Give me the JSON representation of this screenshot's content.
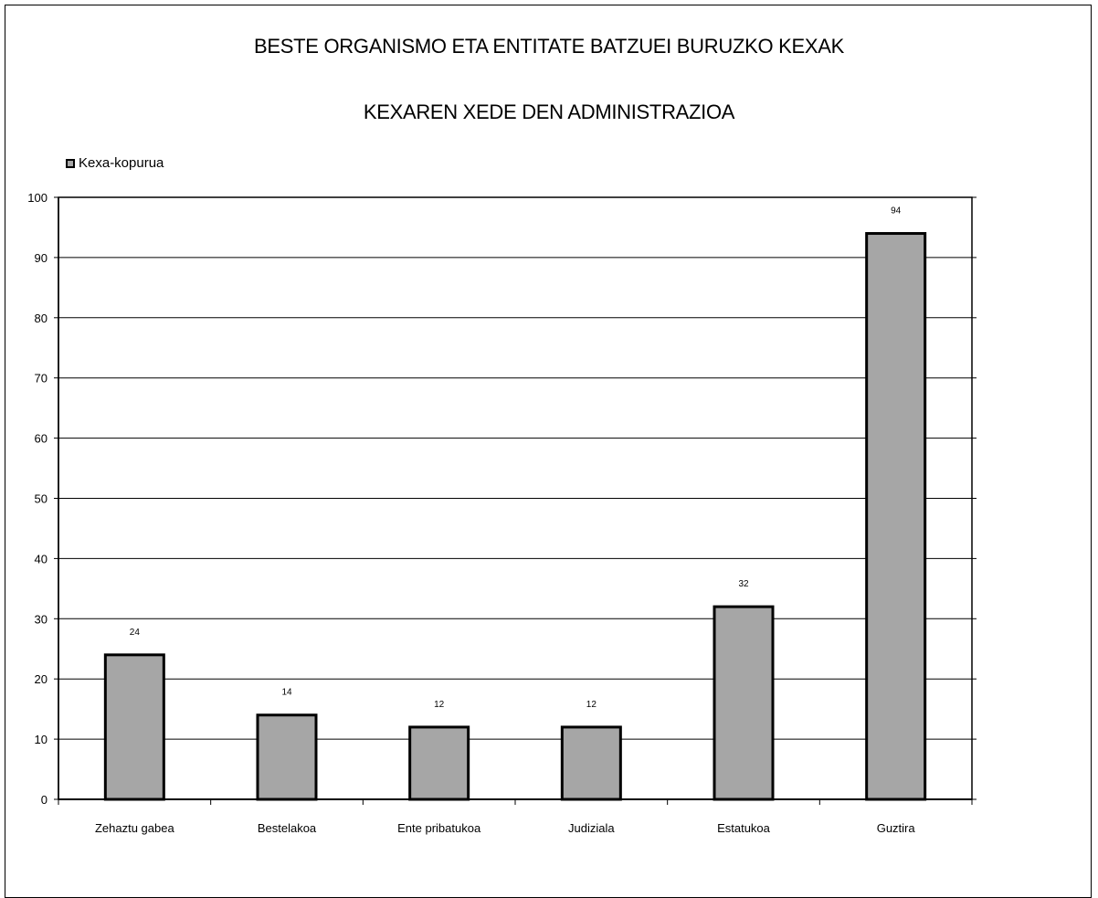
{
  "chart_data": {
    "type": "bar",
    "title": "BESTE ORGANISMO ETA ENTITATE BATZUEI BURUZKO KEXAK",
    "subtitle": "KEXAREN XEDE DEN ADMINISTRAZIOA",
    "categories": [
      "Zehaztu gabea",
      "Bestelakoa",
      "Ente pribatukoa",
      "Judiziala",
      "Estatukoa",
      "Guztira"
    ],
    "series": [
      {
        "name": "Kexa-kopurua",
        "values": [
          24,
          14,
          12,
          12,
          32,
          94
        ]
      }
    ],
    "ylim": [
      0,
      100
    ],
    "yticks": [
      0,
      10,
      20,
      30,
      40,
      50,
      60,
      70,
      80,
      90,
      100
    ],
    "grid": true,
    "legend_position": "top-left",
    "colors": {
      "bar": "#a6a6a6",
      "bar_stroke": "#000000",
      "grid": "#000000"
    }
  }
}
